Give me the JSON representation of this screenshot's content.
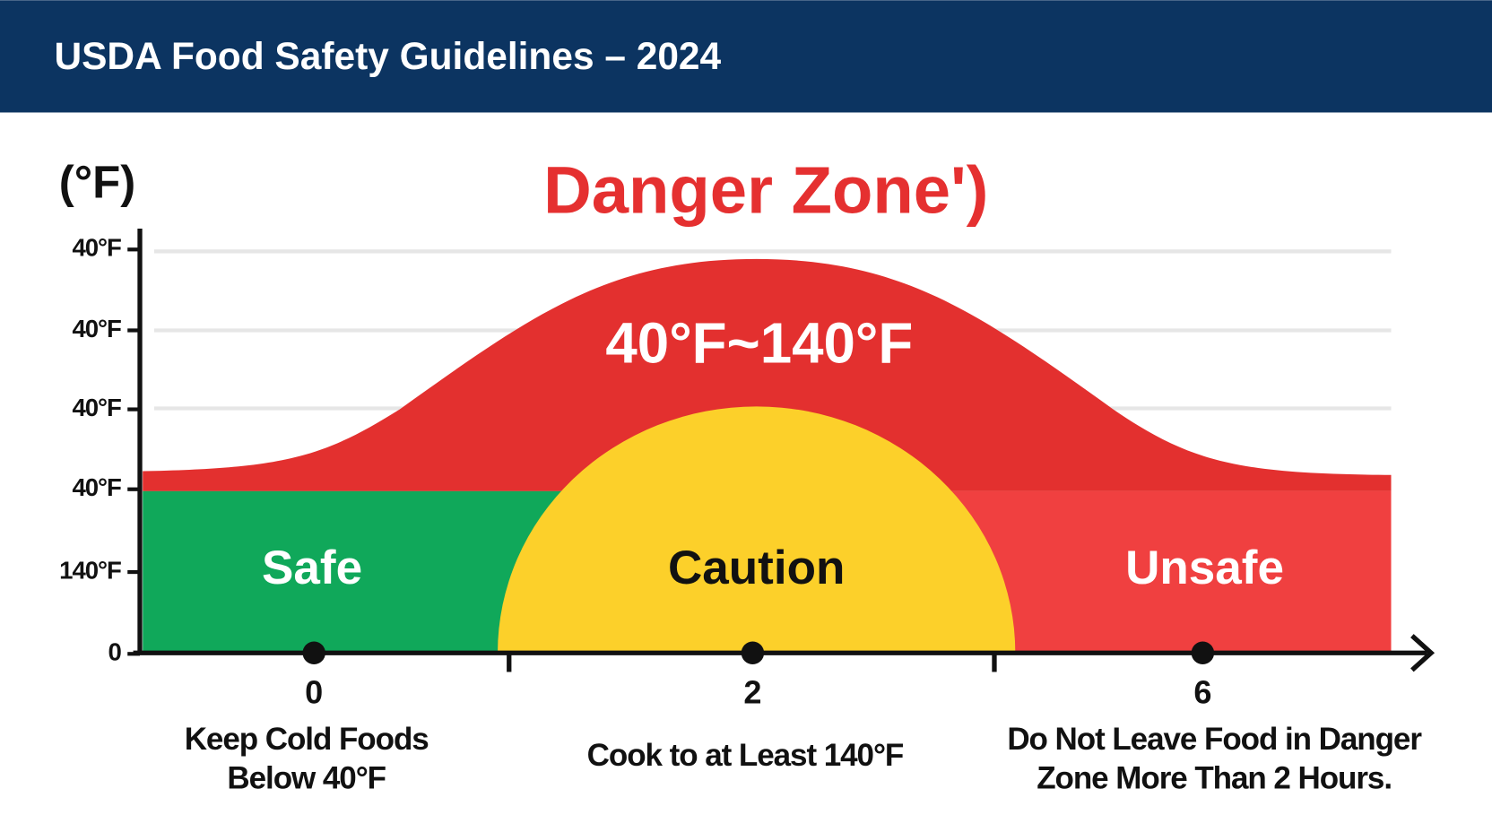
{
  "header": {
    "title": "USDA Food Safety Guidelines – 2024"
  },
  "axis": {
    "unit": "(°F)",
    "y_labels": [
      "40°F",
      "40°F",
      "40°F",
      "40°F",
      "140°F",
      "0"
    ],
    "x_labels": [
      "0",
      "2",
      "6"
    ]
  },
  "danger": {
    "title": "Danger Zone')",
    "range": "40°F~140°F"
  },
  "zones": [
    "Safe",
    "Caution",
    "Unsafe"
  ],
  "notes": [
    [
      "Keep Cold Foods",
      "Below 40°F"
    ],
    [
      "Cook to at Least 140°F"
    ],
    [
      "Do Not Leave Food in Danger",
      "Zone More Than 2 Hours."
    ]
  ]
}
